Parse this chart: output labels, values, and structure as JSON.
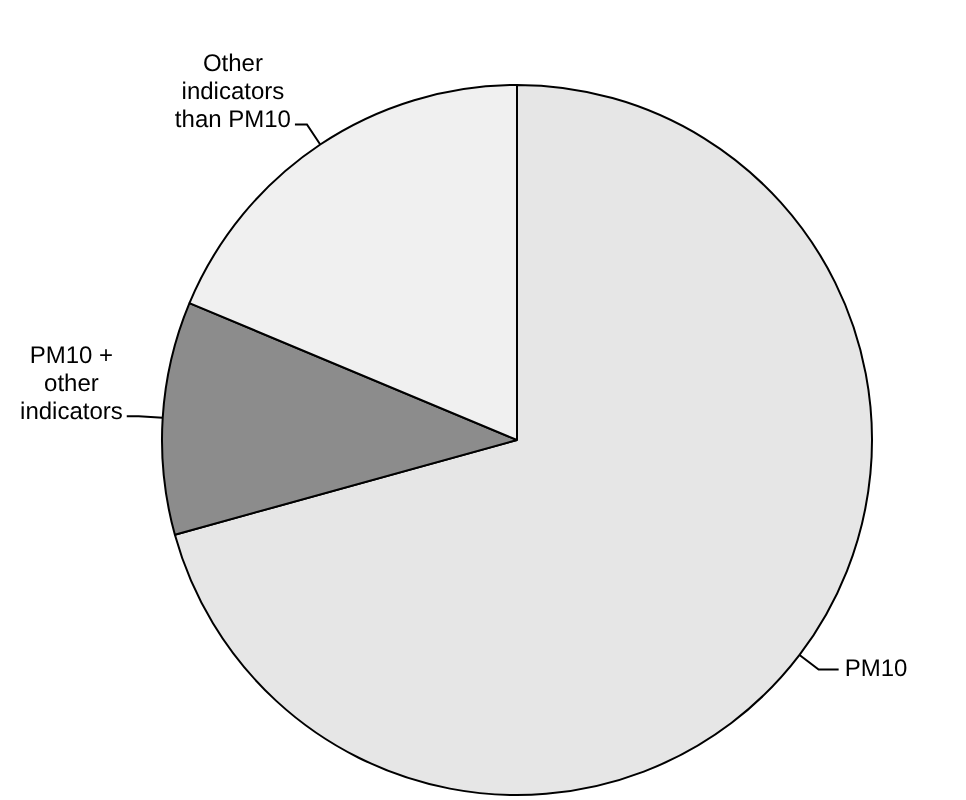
{
  "chart_data": {
    "type": "pie",
    "categories": [
      "PM10",
      "PM10 + other indicators",
      "Other indicators than PM10"
    ],
    "values": [
      70.7,
      10.6,
      18.7
    ],
    "colors": [
      "#e6e6e6",
      "#8c8c8c",
      "#f0f0f0"
    ],
    "legend": false
  }
}
